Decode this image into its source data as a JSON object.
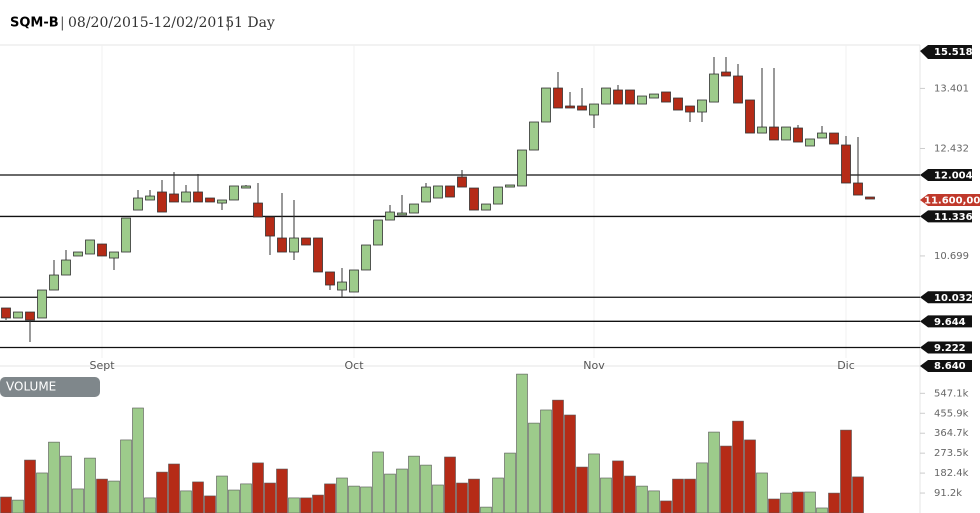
{
  "chart_data": [
    {
      "type": "candlestick",
      "title": "SQM-B",
      "subtitle": "08/20/2015-12/02/2015",
      "interval": "1 Day",
      "categories": [
        null,
        null,
        null,
        null,
        null,
        null,
        null,
        null,
        "Sept",
        null,
        null,
        null,
        null,
        null,
        null,
        null,
        null,
        null,
        null,
        null,
        null,
        null,
        null,
        null,
        null,
        null,
        null,
        null,
        null,
        "Oct",
        null,
        null,
        null,
        null,
        null,
        null,
        null,
        null,
        null,
        null,
        null,
        null,
        null,
        null,
        null,
        null,
        null,
        null,
        null,
        "Nov",
        null,
        null,
        null,
        null,
        null,
        null,
        null,
        null,
        null,
        null,
        null,
        null,
        null,
        null,
        null,
        null,
        null,
        null,
        null,
        null,
        "Dic",
        null,
        null
      ],
      "open": [
        9.859,
        9.698,
        9.794,
        9.698,
        10.149,
        10.391,
        10.698,
        10.73,
        10.891,
        10.665,
        10.762,
        11.439,
        11.601,
        11.73,
        11.698,
        11.569,
        11.73,
        11.633,
        11.552,
        11.601,
        11.794,
        11.552,
        11.327,
        10.988,
        10.762,
        10.988,
        10.988,
        10.44,
        10.149,
        10.117,
        10.472,
        10.875,
        11.278,
        11.359,
        11.391,
        11.569,
        11.633,
        11.827,
        11.972,
        11.794,
        11.439,
        11.536,
        11.81,
        11.827,
        12.407,
        12.859,
        13.407,
        13.117,
        13.117,
        12.972,
        13.149,
        13.375,
        13.375,
        13.149,
        13.246,
        13.343,
        13.246,
        13.117,
        13.02,
        13.181,
        13.665,
        13.601,
        13.214,
        12.681,
        12.778,
        12.569,
        12.762,
        12.472,
        12.601,
        12.681,
        12.488,
        11.875,
        11.649
      ],
      "high": [
        9.859,
        9.794,
        9.794,
        10.149,
        10.633,
        10.794,
        10.762,
        10.956,
        10.891,
        10.762,
        11.31,
        11.762,
        11.762,
        11.923,
        12.052,
        11.843,
        12.02,
        11.633,
        11.601,
        11.827,
        11.843,
        11.875,
        11.327,
        11.714,
        11.601,
        10.988,
        10.988,
        10.44,
        10.504,
        10.472,
        10.875,
        11.278,
        11.52,
        11.681,
        11.536,
        11.875,
        11.827,
        11.827,
        12.085,
        11.794,
        11.536,
        11.81,
        11.843,
        12.407,
        12.859,
        13.407,
        13.665,
        13.343,
        13.407,
        13.149,
        13.407,
        13.456,
        13.375,
        13.278,
        13.31,
        13.343,
        13.246,
        13.117,
        13.214,
        13.907,
        13.907,
        13.794,
        13.214,
        13.73,
        13.73,
        12.778,
        12.81,
        12.585,
        12.794,
        12.681,
        12.633,
        12.617,
        11.649
      ],
      "low": [
        9.665,
        9.698,
        9.311,
        9.698,
        10.149,
        10.391,
        10.698,
        10.73,
        10.698,
        10.472,
        10.762,
        11.439,
        11.601,
        11.407,
        11.569,
        11.569,
        11.569,
        11.569,
        11.439,
        11.601,
        11.794,
        11.327,
        10.714,
        10.762,
        10.633,
        10.875,
        10.44,
        10.149,
        10.02,
        10.117,
        10.472,
        10.875,
        11.278,
        11.359,
        11.391,
        11.569,
        11.633,
        11.649,
        11.81,
        11.439,
        11.439,
        11.536,
        11.81,
        11.827,
        12.407,
        12.859,
        13.085,
        13.085,
        13.052,
        12.762,
        13.149,
        13.149,
        13.149,
        13.149,
        13.246,
        13.181,
        13.052,
        12.859,
        12.859,
        13.181,
        13.601,
        13.165,
        12.681,
        12.681,
        12.569,
        12.569,
        12.536,
        12.472,
        12.601,
        12.504,
        11.875,
        11.681,
        11.617
      ],
      "close": [
        9.698,
        9.794,
        9.665,
        10.149,
        10.391,
        10.633,
        10.762,
        10.956,
        10.698,
        10.762,
        11.31,
        11.633,
        11.665,
        11.407,
        11.569,
        11.73,
        11.569,
        11.569,
        11.601,
        11.827,
        11.827,
        11.327,
        11.02,
        10.762,
        10.988,
        10.875,
        10.44,
        10.23,
        10.278,
        10.472,
        10.875,
        11.278,
        11.407,
        11.391,
        11.536,
        11.81,
        11.827,
        11.649,
        11.81,
        11.439,
        11.536,
        11.81,
        11.843,
        12.407,
        12.859,
        13.407,
        13.085,
        13.085,
        13.052,
        13.149,
        13.407,
        13.149,
        13.149,
        13.278,
        13.31,
        13.181,
        13.052,
        13.02,
        13.214,
        13.633,
        13.601,
        13.165,
        12.681,
        12.778,
        12.569,
        12.778,
        12.536,
        12.585,
        12.681,
        12.504,
        11.875,
        11.681,
        11.617
      ],
      "up_color": "#9dcb8b",
      "down_color": "#b52b17",
      "ylim": [
        9.101,
        14.101
      ],
      "yticks": [
        13.401,
        12.432,
        10.699
      ],
      "levels": [
        12.004,
        11.336,
        10.032,
        9.644,
        9.222
      ],
      "last_price": {
        "value": 11.6,
        "label": "11.600,00"
      },
      "price_extremes": {
        "high": "15.518",
        "low": "8.640"
      }
    },
    {
      "type": "bar",
      "title": "VOLUME",
      "values": [
        73,
        59,
        242,
        183,
        324,
        260,
        110,
        251,
        155,
        146,
        334,
        480,
        69,
        187,
        224,
        101,
        142,
        78,
        169,
        105,
        133,
        229,
        137,
        201,
        69,
        69,
        82,
        133,
        160,
        123,
        119,
        279,
        178,
        201,
        260,
        219,
        128,
        256,
        137,
        155,
        27,
        160,
        274,
        635,
        411,
        471,
        516,
        448,
        210,
        270,
        160,
        238,
        169,
        123,
        101,
        55,
        155,
        155,
        229,
        370,
        306,
        420,
        334,
        183,
        64,
        91,
        96,
        96,
        23,
        91,
        379,
        165,
        null
      ],
      "ylim": [
        0,
        640
      ],
      "yticks": [
        {
          "value": 91.2,
          "label": "91.2k"
        },
        {
          "value": 182.4,
          "label": "182.4k"
        },
        {
          "value": 273.5,
          "label": "273.5k"
        },
        {
          "value": 364.7,
          "label": "364.7k"
        },
        {
          "value": 455.9,
          "label": "455.9k"
        },
        {
          "value": 547.1,
          "label": "547.1k"
        }
      ]
    }
  ]
}
